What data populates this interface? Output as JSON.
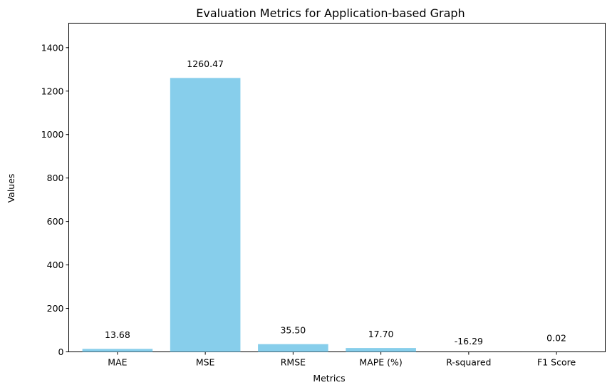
{
  "chart_data": {
    "type": "bar",
    "title": "Evaluation Metrics for Application-based Graph",
    "xlabel": "Metrics",
    "ylabel": "Values",
    "categories": [
      "MAE",
      "MSE",
      "RMSE",
      "MAPE (%)",
      "R-squared",
      "F1 Score"
    ],
    "values": [
      13.68,
      1260.47,
      35.5,
      17.7,
      -16.29,
      0.02
    ],
    "data_labels": [
      "13.68",
      "1260.47",
      "35.50",
      "17.70",
      "-16.29",
      "0.02"
    ],
    "ylim": [
      0,
      1512.56
    ],
    "yticks": [
      0,
      200,
      400,
      600,
      800,
      1000,
      1200,
      1400
    ],
    "bar_color": "#87ceeb",
    "grid": false,
    "legend": "none"
  }
}
